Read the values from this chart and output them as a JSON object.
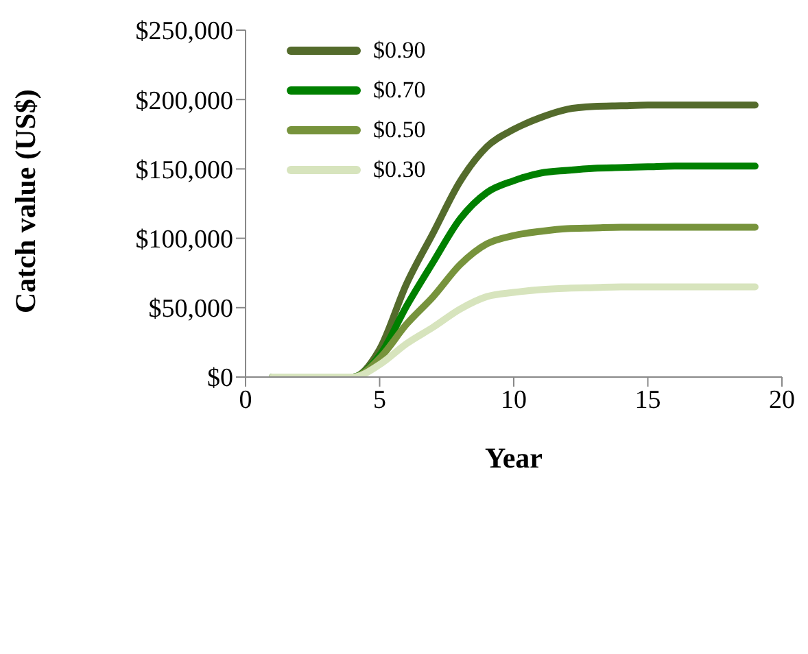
{
  "chart_data": {
    "type": "line",
    "xlabel": "Year",
    "ylabel": "Catch value (US$)",
    "x": [
      1,
      2,
      3,
      4,
      5,
      6,
      7,
      8,
      9,
      10,
      11,
      12,
      13,
      14,
      15,
      16,
      17,
      18,
      19
    ],
    "series": [
      {
        "name": "$0.90",
        "color": "#546b2c",
        "values": [
          0,
          0,
          0,
          0,
          20000,
          67000,
          104000,
          141000,
          166000,
          178500,
          187000,
          193000,
          195000,
          195500,
          196000,
          196000,
          196000,
          196000,
          196000
        ]
      },
      {
        "name": "$0.70",
        "color": "#008000",
        "values": [
          0,
          0,
          0,
          0,
          15500,
          51000,
          83000,
          114000,
          133000,
          141500,
          147000,
          149000,
          150500,
          151000,
          151500,
          152000,
          152000,
          152000,
          152000
        ]
      },
      {
        "name": "$0.50",
        "color": "#77933c",
        "values": [
          0,
          0,
          0,
          0,
          13500,
          38000,
          58000,
          81000,
          96000,
          102000,
          105000,
          107000,
          107500,
          108000,
          108000,
          108000,
          108000,
          108000,
          108000
        ]
      },
      {
        "name": "$0.30",
        "color": "#d7e4bd",
        "values": [
          0,
          0,
          0,
          0,
          9000,
          24000,
          36000,
          49000,
          58000,
          61000,
          63000,
          64000,
          64500,
          65000,
          65000,
          65000,
          65000,
          65000,
          65000
        ]
      }
    ],
    "xlim": [
      0,
      20
    ],
    "xticks": [
      0,
      5,
      10,
      15,
      20
    ],
    "ylim": [
      0,
      250000
    ],
    "yticks": [
      {
        "value": 0,
        "label": "$0"
      },
      {
        "value": 50000,
        "label": "$50,000"
      },
      {
        "value": 100000,
        "label": "$100,000"
      },
      {
        "value": 150000,
        "label": "$150,000"
      },
      {
        "value": 200000,
        "label": "$200,000"
      },
      {
        "value": 250000,
        "label": "$250,000"
      }
    ],
    "grid": false,
    "legend": "top left",
    "marker": "none",
    "line_style": "solid"
  }
}
